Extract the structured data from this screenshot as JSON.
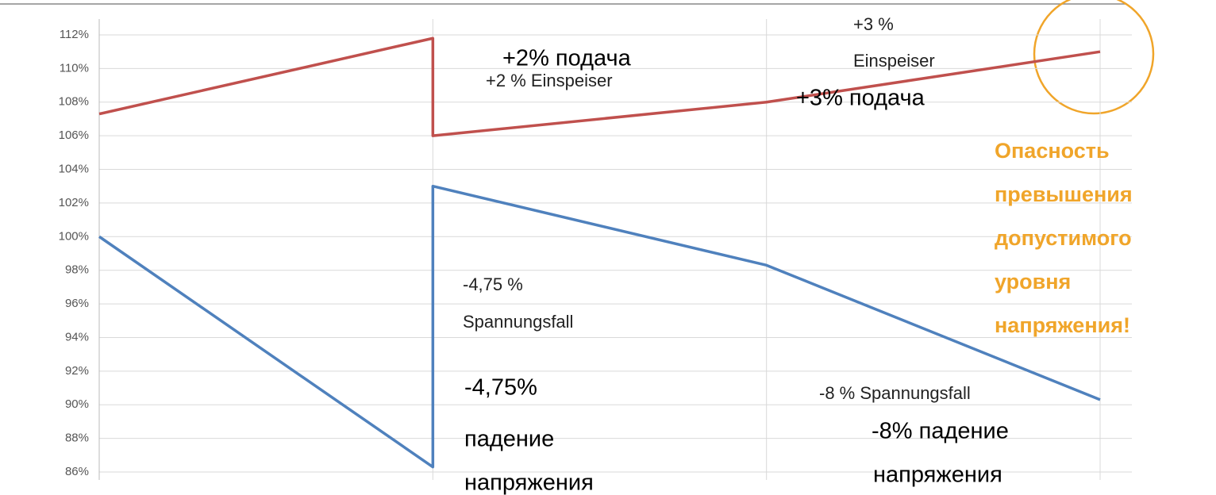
{
  "chart_data": {
    "type": "line",
    "x": [
      0,
      1,
      1,
      2,
      3
    ],
    "xlim": [
      0,
      3
    ],
    "xticks": [
      0,
      1,
      2,
      3
    ],
    "ylim": [
      86,
      112
    ],
    "yticks": [
      {
        "value": 86,
        "label": "86%"
      },
      {
        "value": 88,
        "label": "88%"
      },
      {
        "value": 90,
        "label": "90%"
      },
      {
        "value": 92,
        "label": "92%"
      },
      {
        "value": 94,
        "label": "94%"
      },
      {
        "value": 96,
        "label": "96%"
      },
      {
        "value": 98,
        "label": "98%"
      },
      {
        "value": 100,
        "label": "100%"
      },
      {
        "value": 102,
        "label": "102%"
      },
      {
        "value": 104,
        "label": "104%"
      },
      {
        "value": 106,
        "label": "106%"
      },
      {
        "value": 108,
        "label": "108%"
      },
      {
        "value": 110,
        "label": "110%"
      },
      {
        "value": 112,
        "label": "112%"
      }
    ],
    "grid": true,
    "series": [
      {
        "color": "#c0504d",
        "values": [
          107.3,
          111.8,
          106.0,
          108.0,
          111.0
        ]
      },
      {
        "color": "#4f81bd",
        "values": [
          100.0,
          86.3,
          103.0,
          98.3,
          90.3
        ]
      }
    ],
    "annotations": [
      {
        "text": "+3 %"
      },
      {
        "text": "Einspeiser"
      },
      {
        "text": "+2% подача"
      },
      {
        "text": "+2 % Einspeiser"
      },
      {
        "text": "+3% подача"
      },
      {
        "text": "-4,75 %"
      },
      {
        "text": "Spannungsfall"
      },
      {
        "text": "-4,75%"
      },
      {
        "text": "падение"
      },
      {
        "text": "напряжения"
      },
      {
        "text": "-8 % Spannungsfall"
      },
      {
        "text": "-8% падение"
      },
      {
        "text": "напряжения"
      },
      {
        "text": "Опасность"
      },
      {
        "text": "превышения"
      },
      {
        "text": "допустимого"
      },
      {
        "text": "уровня"
      },
      {
        "text": "напряжения!"
      }
    ]
  }
}
